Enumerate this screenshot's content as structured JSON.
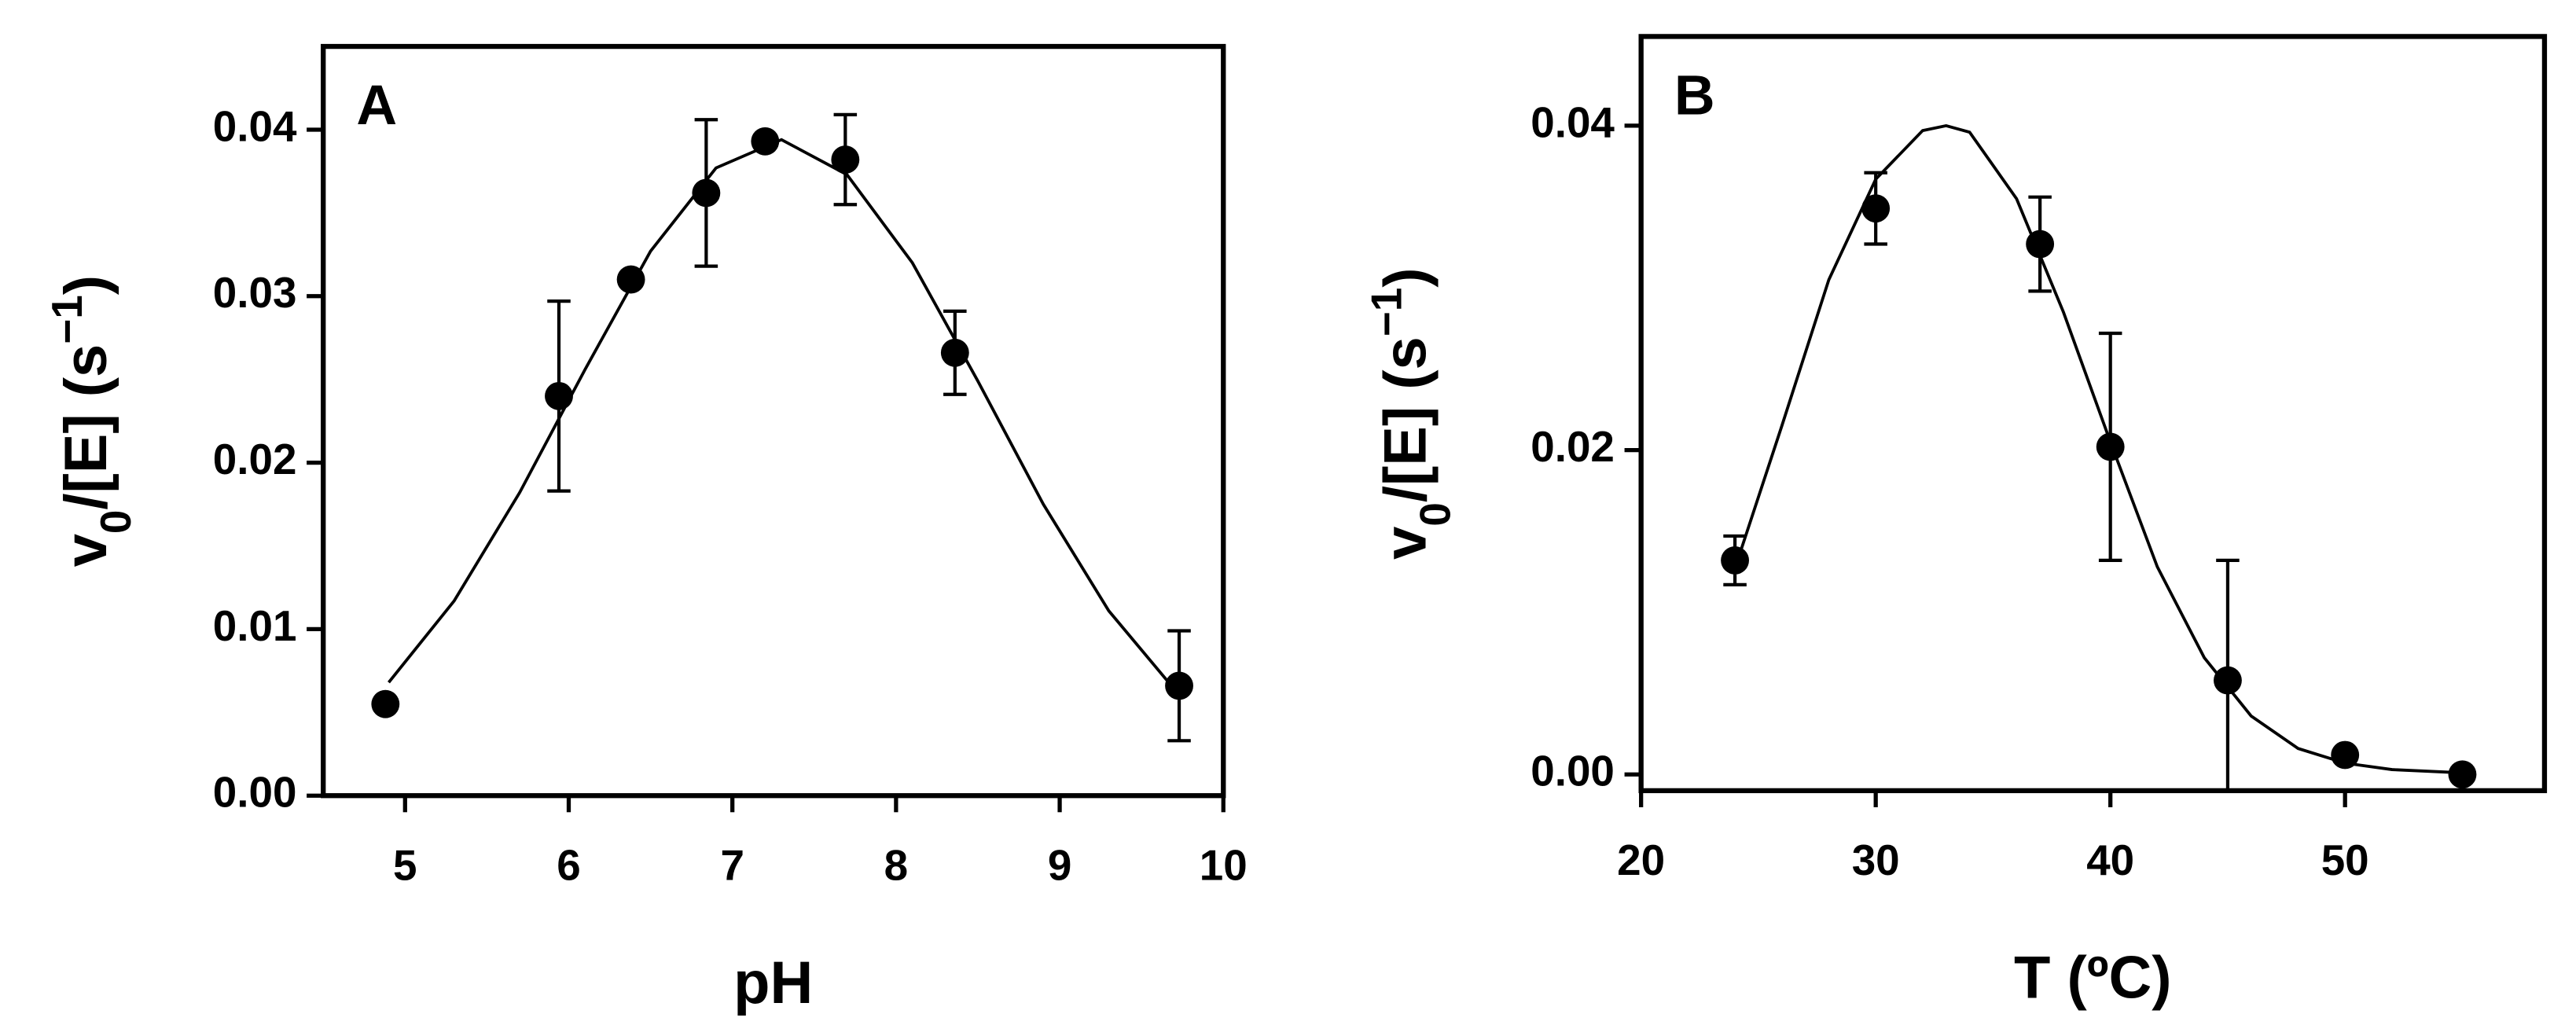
{
  "chart_data": [
    {
      "type": "scatter",
      "panel_label": "A",
      "xlabel": "pH",
      "ylabel": [
        "v",
        "0",
        "/[E] (s",
        "−1",
        ")"
      ],
      "ylabel_styles": [
        "normal",
        "sub",
        "normal",
        "sup",
        "normal"
      ],
      "xlim": [
        4.5,
        10
      ],
      "xticks": [
        5,
        6,
        7,
        8,
        9,
        10
      ],
      "ylim": [
        0,
        0.045
      ],
      "yticks": [
        {
          "value": 0,
          "label": "0.00"
        },
        0.01,
        0.02,
        0.03,
        0.04
      ],
      "color": "#000000",
      "x": [
        4.88,
        5.94,
        6.38,
        6.84,
        7.2,
        7.69,
        8.36,
        9.73
      ],
      "values": [
        0.0055,
        0.024,
        0.031,
        0.0362,
        0.0393,
        0.0382,
        0.0266,
        0.0066
      ],
      "errors": [
        null,
        0.0057,
        null,
        0.0044,
        null,
        0.0027,
        0.0025,
        0.0033
      ],
      "fit": {
        "x": [
          4.9,
          5.3,
          5.7,
          6.1,
          6.5,
          6.9,
          7.3,
          7.7,
          8.1,
          8.5,
          8.9,
          9.3,
          9.7
        ],
        "values": [
          0.0068,
          0.0117,
          0.0182,
          0.0256,
          0.0327,
          0.0377,
          0.0394,
          0.0373,
          0.032,
          0.0249,
          0.0175,
          0.0111,
          0.0064
        ]
      }
    },
    {
      "type": "scatter",
      "panel_label": "B",
      "xlabel": "T (ºC)",
      "ylabel": [
        "v",
        "0",
        "/[E] (s",
        "−1",
        ")"
      ],
      "ylabel_styles": [
        "normal",
        "sub",
        "normal",
        "sup",
        "normal"
      ],
      "xlim": [
        20,
        58.5
      ],
      "xticks": [
        20,
        30,
        40,
        50
      ],
      "ylim": [
        -0.001,
        0.0455
      ],
      "yticks": [
        {
          "value": 0,
          "label": "0.00"
        },
        0.02,
        0.04
      ],
      "color": "#000000",
      "x": [
        24,
        30,
        37,
        40,
        45,
        50,
        55
      ],
      "values": [
        0.0132,
        0.0349,
        0.0327,
        0.0202,
        0.0058,
        0.0012,
        0.0
      ],
      "errors": [
        0.0015,
        0.0022,
        0.0029,
        0.007,
        0.0074,
        null,
        null
      ],
      "fit": {
        "x": [
          24,
          26,
          28,
          30,
          32,
          33,
          34,
          36,
          38,
          40,
          42,
          44,
          46,
          48,
          50,
          52,
          55
        ],
        "values": [
          0.0127,
          0.0215,
          0.0305,
          0.0367,
          0.0397,
          0.04,
          0.0396,
          0.0355,
          0.0285,
          0.0205,
          0.0128,
          0.0072,
          0.0036,
          0.0016,
          0.0007,
          0.0003,
          0.0001
        ]
      }
    }
  ]
}
